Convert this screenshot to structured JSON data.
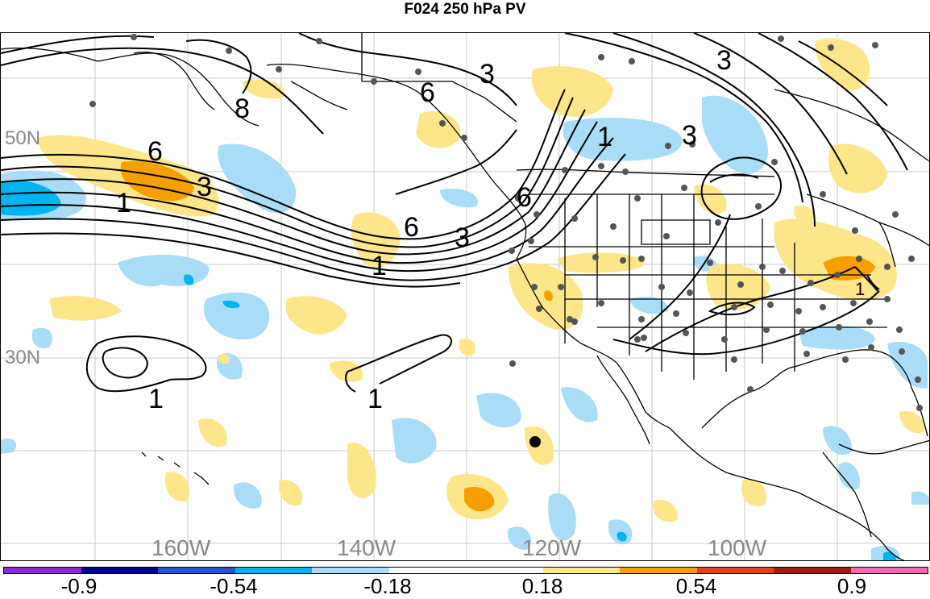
{
  "title": "F024 250 hPa PV",
  "map": {
    "longitude_labels": [
      "160W",
      "140W",
      "120W",
      "100W"
    ],
    "latitude_labels": [
      "50N",
      "30N"
    ],
    "contour_labels": [
      "6",
      "3",
      "1",
      "6",
      "3",
      "1",
      "8",
      "6",
      "3",
      "1",
      "6",
      "3",
      "1",
      "1",
      "1",
      "3"
    ],
    "storm_marker": "tropical-cyclone-dot"
  },
  "colorbar": {
    "colors": [
      "#8a2bd6",
      "#000096",
      "#2a52d4",
      "#00b4f0",
      "#a8dcf7",
      "#ffffff",
      "#ffffff",
      "#fde68a",
      "#f5a000",
      "#e8401a",
      "#a31919",
      "#f26bb0"
    ],
    "tick_labels": [
      "-0.9",
      "-0.54",
      "-0.18",
      "0.18",
      "0.54",
      "0.9"
    ]
  }
}
